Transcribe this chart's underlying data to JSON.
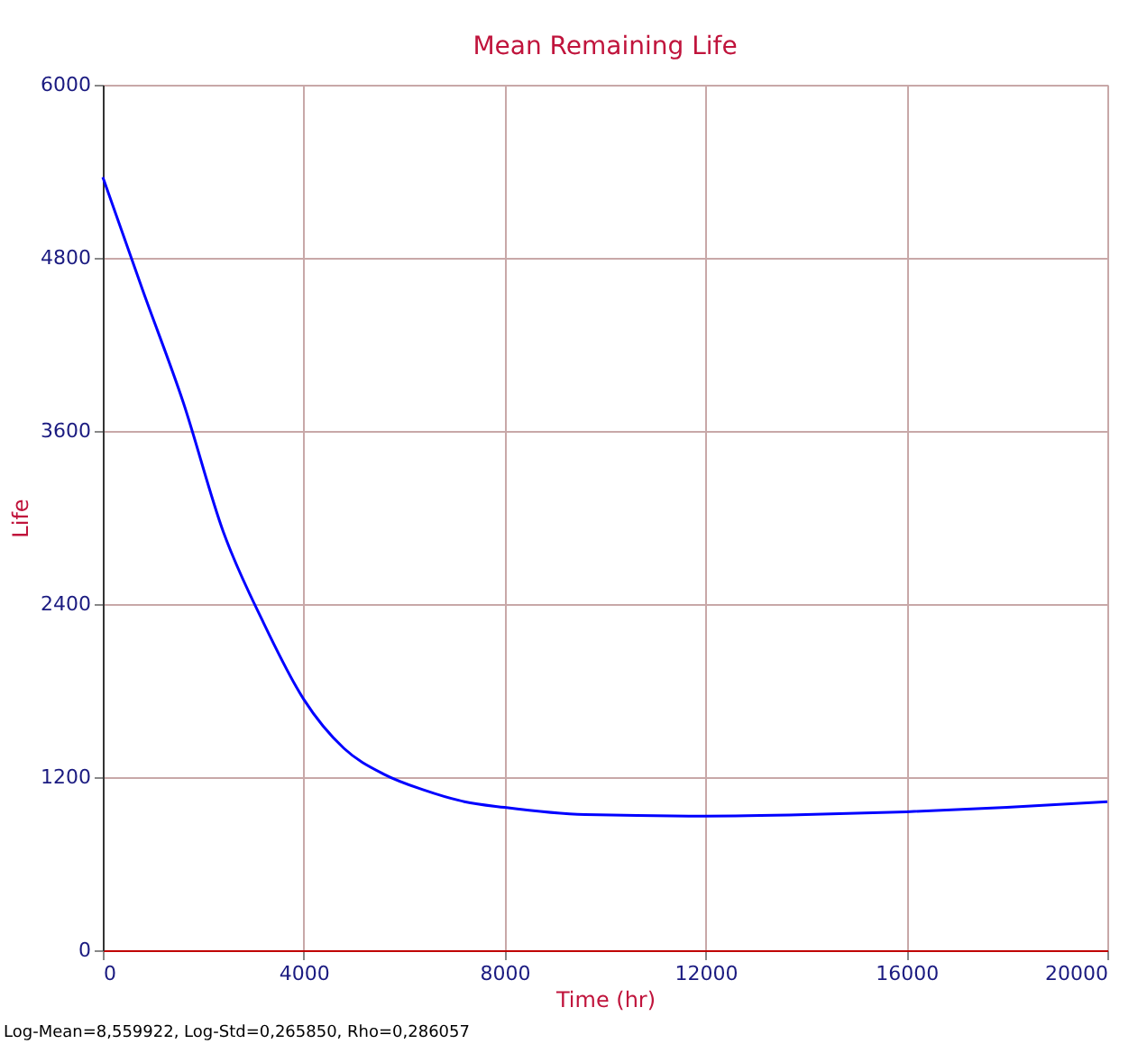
{
  "chart_data": {
    "type": "line",
    "title": "Mean Remaining Life",
    "xlabel": "Time (hr)",
    "ylabel": "Life",
    "x": [
      0,
      800,
      1600,
      2400,
      3200,
      4000,
      4800,
      5600,
      6400,
      7200,
      8000,
      9600,
      12000,
      14000,
      16000,
      18000,
      20000
    ],
    "series": [
      {
        "color": "#0000ff",
        "values": [
          5360,
          4570,
          3800,
          2900,
          2270,
          1740,
          1400,
          1220,
          1110,
          1030,
          990,
          940,
          930,
          940,
          960,
          990,
          1030
        ]
      }
    ],
    "xlim": [
      0,
      20000
    ],
    "xticks": [
      0,
      4000,
      8000,
      12000,
      16000,
      20000
    ],
    "ylim": [
      0,
      6000
    ],
    "yticks": [
      0,
      1200,
      2400,
      3600,
      4800,
      6000
    ],
    "grid": true,
    "marker": "none",
    "line_style": "solid",
    "annotations": [
      "Log-Mean=8,559922, Log-Std=0,265850, Rho=0,286057"
    ]
  }
}
